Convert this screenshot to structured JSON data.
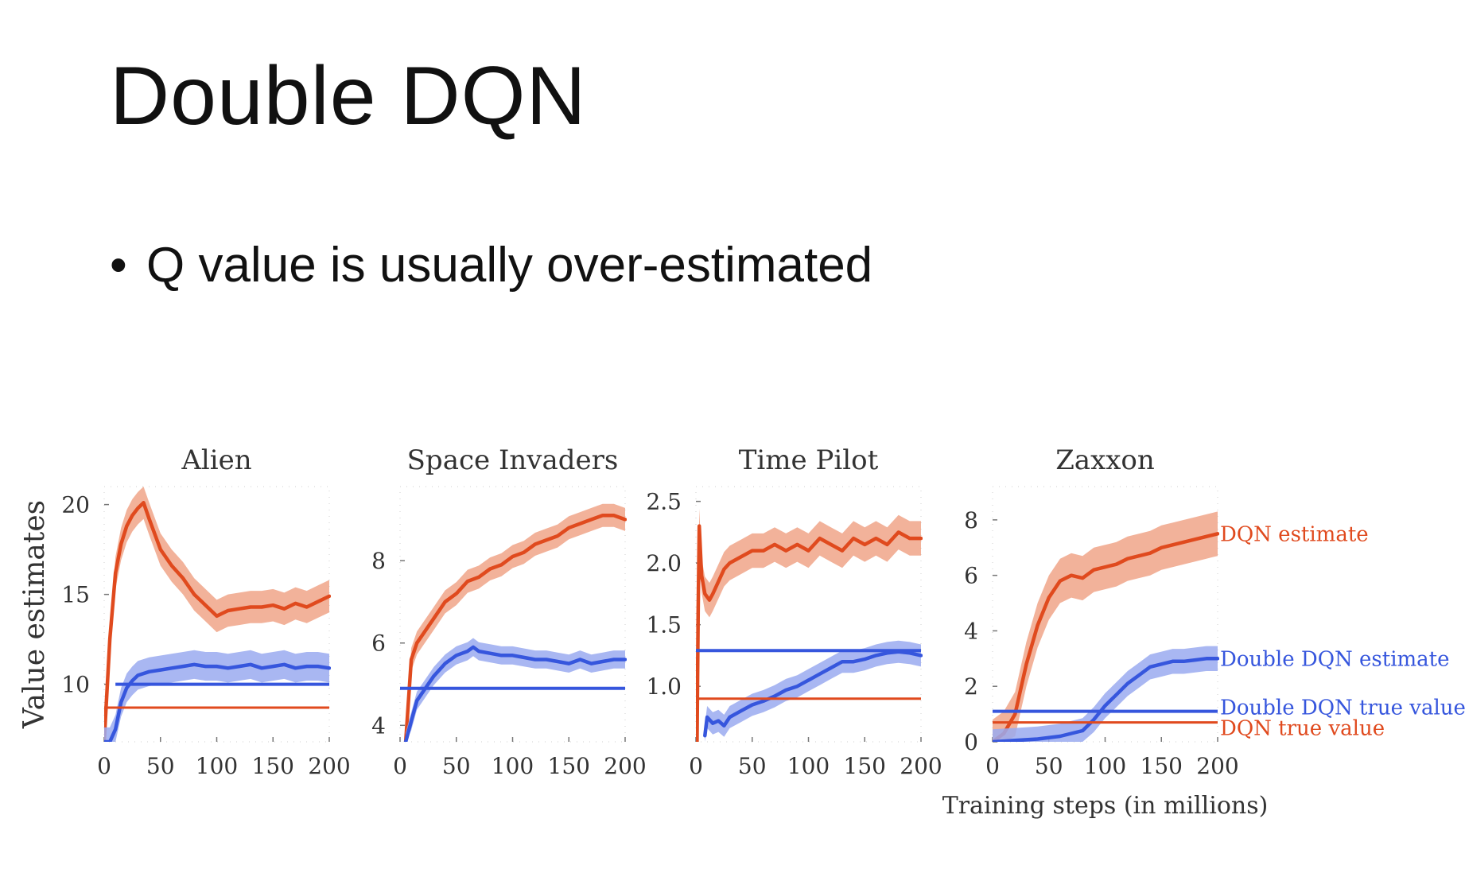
{
  "slide": {
    "title": "Double DQN",
    "bullet": "Q value is usually over-estimated"
  },
  "colors": {
    "dqn": "#e04a1e",
    "dqn_band": "#f0a488",
    "double": "#3656dd",
    "double_band": "#9aaaf0",
    "axis": "#777777",
    "text": "#333333"
  },
  "chart_data": [
    {
      "type": "line",
      "title": "Alien",
      "ylabel": "Value estimates",
      "xlim": [
        0,
        200
      ],
      "ylim": [
        6.8,
        21
      ],
      "xticks": [
        0,
        50,
        100,
        150,
        200
      ],
      "xtick_labels": [
        "0",
        "50",
        "100",
        "150",
        "200"
      ],
      "yticks": [
        10,
        15,
        20
      ],
      "ytick_labels": [
        "10",
        "15",
        "20"
      ],
      "series": [
        {
          "role": "dqn_estimate",
          "band": 0.9,
          "x": [
            0,
            5,
            10,
            15,
            20,
            25,
            30,
            35,
            40,
            50,
            60,
            70,
            80,
            90,
            100,
            110,
            120,
            130,
            140,
            150,
            160,
            170,
            180,
            190,
            200
          ],
          "y": [
            6.8,
            12.5,
            16.2,
            17.8,
            18.8,
            19.4,
            19.8,
            20.1,
            19.2,
            17.5,
            16.6,
            15.9,
            15.0,
            14.4,
            13.8,
            14.1,
            14.2,
            14.3,
            14.3,
            14.4,
            14.2,
            14.5,
            14.3,
            14.6,
            14.9
          ]
        },
        {
          "role": "double_estimate",
          "band": 0.8,
          "x": [
            0,
            5,
            10,
            15,
            20,
            25,
            30,
            40,
            50,
            60,
            70,
            80,
            90,
            100,
            110,
            120,
            130,
            140,
            150,
            160,
            170,
            180,
            190,
            200
          ],
          "y": [
            6.8,
            6.8,
            7.5,
            9.0,
            9.8,
            10.2,
            10.5,
            10.7,
            10.8,
            10.9,
            11.0,
            11.1,
            11.0,
            11.0,
            10.9,
            11.0,
            11.1,
            10.9,
            11.0,
            11.1,
            10.9,
            11.0,
            11.0,
            10.9
          ]
        },
        {
          "role": "double_true",
          "x": [
            10,
            200
          ],
          "y": [
            10.0,
            10.0
          ]
        },
        {
          "role": "dqn_true",
          "x": [
            0,
            200
          ],
          "y": [
            8.7,
            8.7
          ]
        }
      ]
    },
    {
      "type": "line",
      "title": "Space Invaders",
      "xlim": [
        0,
        200
      ],
      "ylim": [
        3.6,
        9.8
      ],
      "xticks": [
        0,
        50,
        100,
        150,
        200
      ],
      "xtick_labels": [
        "0",
        "50",
        "100",
        "150",
        "200"
      ],
      "yticks": [
        4,
        6,
        8
      ],
      "ytick_labels": [
        "4",
        "6",
        "8"
      ],
      "series": [
        {
          "role": "dqn_estimate",
          "band": 0.28,
          "x": [
            5,
            8,
            10,
            15,
            20,
            30,
            40,
            50,
            60,
            70,
            80,
            90,
            100,
            110,
            120,
            130,
            140,
            150,
            160,
            170,
            180,
            190,
            200
          ],
          "y": [
            3.6,
            4.8,
            5.6,
            6.0,
            6.2,
            6.6,
            7.0,
            7.2,
            7.5,
            7.6,
            7.8,
            7.9,
            8.1,
            8.2,
            8.4,
            8.5,
            8.6,
            8.8,
            8.9,
            9.0,
            9.1,
            9.1,
            9.0
          ]
        },
        {
          "role": "double_estimate",
          "band": 0.22,
          "x": [
            5,
            10,
            15,
            20,
            25,
            30,
            40,
            50,
            60,
            65,
            70,
            80,
            90,
            100,
            110,
            120,
            130,
            140,
            150,
            160,
            170,
            180,
            190,
            200
          ],
          "y": [
            3.6,
            4.1,
            4.6,
            4.8,
            5.0,
            5.2,
            5.5,
            5.7,
            5.8,
            5.9,
            5.8,
            5.75,
            5.7,
            5.7,
            5.65,
            5.6,
            5.6,
            5.55,
            5.5,
            5.6,
            5.5,
            5.55,
            5.6,
            5.6
          ]
        },
        {
          "role": "double_true",
          "x": [
            0,
            200
          ],
          "y": [
            4.9,
            4.9
          ]
        },
        {
          "role": "dqn_true",
          "x": [
            0,
            200
          ],
          "y": [
            4.9,
            4.9
          ]
        }
      ]
    },
    {
      "type": "line",
      "title": "Time Pilot",
      "xlim": [
        0,
        200
      ],
      "ylim": [
        0.55,
        2.62
      ],
      "xticks": [
        0,
        50,
        100,
        150,
        200
      ],
      "xtick_labels": [
        "0",
        "50",
        "100",
        "150",
        "200"
      ],
      "yticks": [
        1.0,
        1.5,
        2.0,
        2.5
      ],
      "ytick_labels": [
        "1.0",
        "1.5",
        "2.0",
        "2.5"
      ],
      "series": [
        {
          "role": "dqn_estimate",
          "band": 0.14,
          "x": [
            1,
            2,
            3,
            5,
            8,
            12,
            15,
            20,
            25,
            30,
            40,
            50,
            60,
            70,
            80,
            90,
            100,
            110,
            120,
            130,
            140,
            150,
            160,
            170,
            180,
            190,
            200
          ],
          "y": [
            0.55,
            1.6,
            2.3,
            1.9,
            1.75,
            1.7,
            1.75,
            1.85,
            1.95,
            2.0,
            2.05,
            2.1,
            2.1,
            2.15,
            2.1,
            2.15,
            2.1,
            2.2,
            2.15,
            2.1,
            2.2,
            2.15,
            2.2,
            2.15,
            2.25,
            2.2,
            2.2
          ]
        },
        {
          "role": "double_estimate",
          "band": 0.09,
          "x": [
            8,
            10,
            15,
            20,
            25,
            30,
            40,
            50,
            60,
            70,
            80,
            90,
            100,
            110,
            120,
            130,
            140,
            150,
            160,
            170,
            180,
            190,
            200
          ],
          "y": [
            0.6,
            0.75,
            0.7,
            0.72,
            0.68,
            0.75,
            0.8,
            0.85,
            0.88,
            0.92,
            0.97,
            1.0,
            1.05,
            1.1,
            1.15,
            1.2,
            1.2,
            1.22,
            1.25,
            1.27,
            1.28,
            1.27,
            1.25
          ]
        },
        {
          "role": "double_true",
          "x": [
            0,
            200
          ],
          "y": [
            1.29,
            1.29
          ]
        },
        {
          "role": "dqn_true",
          "x": [
            0,
            200
          ],
          "y": [
            0.9,
            0.9
          ]
        }
      ]
    },
    {
      "type": "line",
      "title": "Zaxxon",
      "xlabel": "Training steps (in millions)",
      "xlim": [
        0,
        200
      ],
      "ylim": [
        0,
        9.2
      ],
      "xticks": [
        0,
        50,
        100,
        150,
        200
      ],
      "xtick_labels": [
        "0",
        "50",
        "100",
        "150",
        "200"
      ],
      "yticks": [
        0,
        2,
        4,
        6,
        8
      ],
      "ytick_labels": [
        "0",
        "2",
        "4",
        "6",
        "8"
      ],
      "series": [
        {
          "role": "dqn_estimate",
          "label": "DQN estimate",
          "band": 0.8,
          "x": [
            0,
            10,
            20,
            30,
            40,
            50,
            60,
            70,
            80,
            90,
            100,
            110,
            120,
            130,
            140,
            150,
            160,
            170,
            180,
            190,
            200
          ],
          "y": [
            0.0,
            0.3,
            1.0,
            2.8,
            4.2,
            5.2,
            5.8,
            6.0,
            5.9,
            6.2,
            6.3,
            6.4,
            6.6,
            6.7,
            6.8,
            7.0,
            7.1,
            7.2,
            7.3,
            7.4,
            7.5
          ]
        },
        {
          "role": "double_estimate",
          "label": "Double DQN estimate",
          "band": 0.45,
          "x": [
            0,
            20,
            40,
            60,
            80,
            90,
            100,
            110,
            120,
            130,
            140,
            150,
            160,
            170,
            180,
            190,
            200
          ],
          "y": [
            0.0,
            0.05,
            0.1,
            0.2,
            0.4,
            0.8,
            1.3,
            1.7,
            2.1,
            2.4,
            2.7,
            2.8,
            2.9,
            2.9,
            2.95,
            3.0,
            3.0
          ]
        },
        {
          "role": "double_true",
          "label": "Double DQN true value",
          "x": [
            0,
            200
          ],
          "y": [
            1.1,
            1.1
          ]
        },
        {
          "role": "dqn_true",
          "label": "DQN true value",
          "x": [
            0,
            200
          ],
          "y": [
            0.7,
            0.7
          ]
        }
      ]
    }
  ]
}
